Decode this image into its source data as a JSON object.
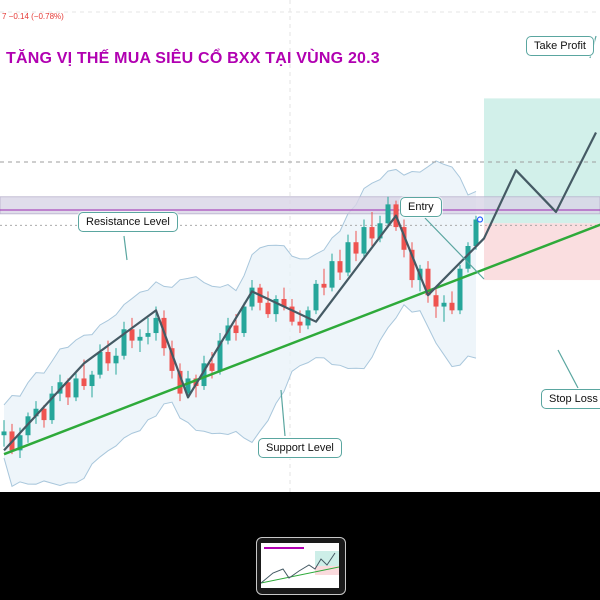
{
  "header": {
    "price_change": "7 −0.14 (−0.78%)",
    "title": "TĂNG VỊ THẾ MUA SIÊU CỔ BXX TẠI VÙNG 20.3"
  },
  "callouts": {
    "resistance": "Resistance Level",
    "support": "Support Level",
    "entry": "Entry",
    "take_profit": "Take Profit",
    "stop_loss": "Stop Loss"
  },
  "colors": {
    "title": "#b100b1",
    "bull_candle": "#26a69a",
    "bear_candle": "#ef5350",
    "support_line": "#2eaa3a",
    "zigzag": "#455a64",
    "resistance_zone": "#d8d4e6",
    "resistance_line": "#9c27b0",
    "target_zone": "#cdeee8",
    "stop_zone": "#fadadd",
    "callout_border": "#5aa6a0"
  },
  "chart_data": {
    "type": "candlestick",
    "title": "TĂNG VỊ THẾ MUA SIÊU CỔ BXX TẠI VÙNG 20.3",
    "ylim": [
      13,
      26
    ],
    "resistance_zone": [
      20.35,
      20.8
    ],
    "resistance_line": 20.45,
    "support_line": {
      "from": [
        0,
        14.0
      ],
      "to": [
        75,
        20.1
      ]
    },
    "zigzag": [
      [
        0,
        14.1
      ],
      [
        10,
        16.4
      ],
      [
        19,
        17.8
      ],
      [
        23,
        15.5
      ],
      [
        31,
        18.3
      ],
      [
        39,
        17.5
      ],
      [
        49,
        20.3
      ],
      [
        53,
        18.2
      ],
      [
        60,
        19.7
      ],
      [
        64,
        21.5
      ],
      [
        69,
        20.4
      ],
      [
        74,
        22.5
      ]
    ],
    "target_zone": {
      "x_from": 60,
      "x_to": 75,
      "y_from": 20.1,
      "y_to": 23.4
    },
    "stop_zone": {
      "x_from": 60,
      "x_to": 75,
      "y_from": 18.6,
      "y_to": 20.1
    },
    "entry": [
      59.5,
      20.2
    ],
    "candles": [
      [
        14.5,
        14.9,
        14.2,
        14.6
      ],
      [
        14.6,
        14.8,
        14.0,
        14.1
      ],
      [
        14.1,
        14.7,
        13.9,
        14.5
      ],
      [
        14.5,
        15.1,
        14.3,
        15.0
      ],
      [
        15.0,
        15.4,
        14.8,
        15.2
      ],
      [
        15.2,
        15.3,
        14.7,
        14.9
      ],
      [
        14.9,
        15.8,
        14.8,
        15.6
      ],
      [
        15.6,
        16.1,
        15.4,
        15.9
      ],
      [
        15.9,
        16.0,
        15.3,
        15.5
      ],
      [
        15.5,
        16.2,
        15.4,
        16.0
      ],
      [
        16.0,
        16.5,
        15.7,
        15.8
      ],
      [
        15.8,
        16.2,
        15.5,
        16.1
      ],
      [
        16.1,
        16.9,
        16.0,
        16.7
      ],
      [
        16.7,
        17.0,
        16.2,
        16.4
      ],
      [
        16.4,
        16.8,
        16.1,
        16.6
      ],
      [
        16.6,
        17.5,
        16.5,
        17.3
      ],
      [
        17.3,
        17.6,
        16.8,
        17.0
      ],
      [
        17.0,
        17.3,
        16.7,
        17.1
      ],
      [
        17.1,
        17.6,
        16.9,
        17.2
      ],
      [
        17.2,
        17.9,
        17.0,
        17.6
      ],
      [
        17.6,
        17.8,
        16.6,
        16.8
      ],
      [
        16.8,
        17.0,
        16.0,
        16.2
      ],
      [
        16.2,
        16.4,
        15.4,
        15.6
      ],
      [
        15.6,
        16.2,
        15.5,
        16.0
      ],
      [
        16.0,
        16.1,
        15.5,
        15.8
      ],
      [
        15.8,
        16.6,
        15.7,
        16.4
      ],
      [
        16.4,
        16.7,
        16.0,
        16.2
      ],
      [
        16.2,
        17.2,
        16.1,
        17.0
      ],
      [
        17.0,
        17.6,
        16.9,
        17.4
      ],
      [
        17.4,
        17.7,
        17.0,
        17.2
      ],
      [
        17.2,
        18.0,
        17.1,
        17.9
      ],
      [
        17.9,
        18.6,
        17.8,
        18.4
      ],
      [
        18.4,
        18.5,
        17.8,
        18.0
      ],
      [
        18.0,
        18.3,
        17.6,
        17.7
      ],
      [
        17.7,
        18.2,
        17.5,
        18.1
      ],
      [
        18.1,
        18.4,
        17.8,
        17.9
      ],
      [
        17.9,
        18.1,
        17.4,
        17.5
      ],
      [
        17.5,
        17.8,
        17.2,
        17.4
      ],
      [
        17.4,
        17.9,
        17.3,
        17.8
      ],
      [
        17.8,
        18.6,
        17.7,
        18.5
      ],
      [
        18.5,
        18.9,
        18.2,
        18.4
      ],
      [
        18.4,
        19.3,
        18.3,
        19.1
      ],
      [
        19.1,
        19.4,
        18.6,
        18.8
      ],
      [
        18.8,
        19.8,
        18.7,
        19.6
      ],
      [
        19.6,
        19.9,
        19.1,
        19.3
      ],
      [
        19.3,
        20.2,
        19.2,
        20.0
      ],
      [
        20.0,
        20.4,
        19.5,
        19.7
      ],
      [
        19.7,
        20.3,
        19.6,
        20.1
      ],
      [
        20.1,
        20.8,
        20.0,
        20.6
      ],
      [
        20.6,
        20.7,
        19.9,
        20.0
      ],
      [
        20.0,
        20.2,
        19.2,
        19.4
      ],
      [
        19.4,
        19.6,
        18.4,
        18.6
      ],
      [
        18.6,
        19.0,
        18.3,
        18.9
      ],
      [
        18.9,
        19.1,
        18.0,
        18.2
      ],
      [
        18.2,
        18.4,
        17.6,
        17.9
      ],
      [
        17.9,
        18.2,
        17.5,
        18.0
      ],
      [
        18.0,
        18.3,
        17.7,
        17.8
      ],
      [
        17.8,
        19.0,
        17.7,
        18.9
      ],
      [
        18.9,
        19.6,
        18.8,
        19.5
      ],
      [
        19.5,
        20.3,
        19.4,
        20.2
      ]
    ]
  }
}
